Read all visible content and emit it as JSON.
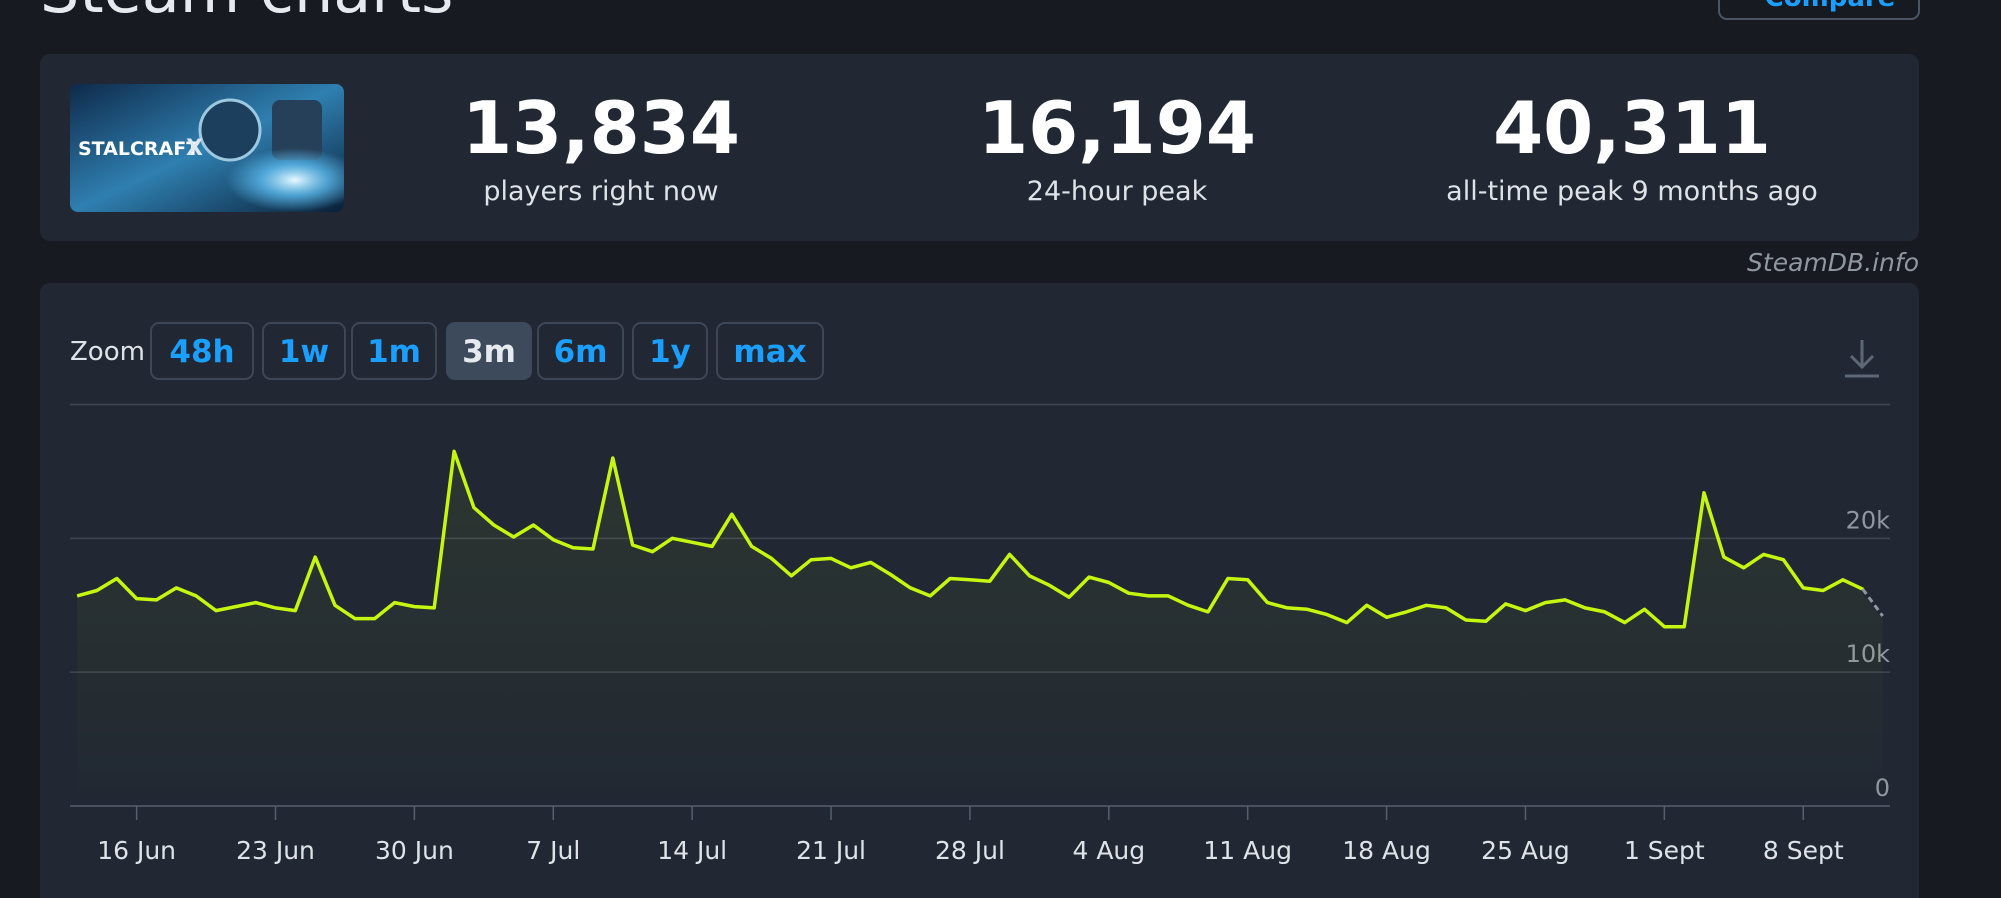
{
  "header": {
    "title": "Steam charts",
    "compare": "Compare"
  },
  "thumbnail": {
    "title": "STALCRAFT",
    "mark": "X"
  },
  "stats": [
    {
      "value": "13,834",
      "label": "players right now"
    },
    {
      "value": "16,194",
      "label": "24-hour peak"
    },
    {
      "value": "40,311",
      "label": "all-time peak 9 months ago"
    }
  ],
  "watermark": "SteamDB.info",
  "zoom": {
    "label": "Zoom",
    "options": [
      "48h",
      "1w",
      "1m",
      "3m",
      "6m",
      "1y",
      "max"
    ],
    "active": "3m"
  },
  "chart_data": {
    "type": "line",
    "color": "#c5f60f",
    "grid": true,
    "categories": [
      null,
      null,
      null,
      "16 Jun",
      null,
      null,
      null,
      null,
      null,
      null,
      "23 Jun",
      null,
      null,
      null,
      null,
      null,
      null,
      "30 Jun",
      null,
      null,
      null,
      null,
      null,
      null,
      "7 Jul",
      null,
      null,
      null,
      null,
      null,
      null,
      "14 Jul",
      null,
      null,
      null,
      null,
      null,
      null,
      "21 Jul",
      null,
      null,
      null,
      null,
      null,
      null,
      "28 Jul",
      null,
      null,
      null,
      null,
      null,
      null,
      "4 Aug",
      null,
      null,
      null,
      null,
      null,
      null,
      "11 Aug",
      null,
      null,
      null,
      null,
      null,
      null,
      "18 Aug",
      null,
      null,
      null,
      null,
      null,
      null,
      "25 Aug",
      null,
      null,
      null,
      null,
      null,
      null,
      "1 Sept",
      null,
      null,
      null,
      null,
      null,
      null,
      "8 Sept",
      null,
      null,
      null,
      null
    ],
    "values": [
      15700,
      16100,
      17000,
      15500,
      15400,
      16300,
      15700,
      14600,
      14900,
      15200,
      14800,
      14600,
      18600,
      15000,
      14000,
      14000,
      15200,
      14900,
      14800,
      26500,
      22300,
      21000,
      20100,
      21000,
      19900,
      19300,
      19200,
      26000,
      19500,
      19000,
      20000,
      19700,
      19400,
      21800,
      19400,
      18500,
      17200,
      18400,
      18500,
      17800,
      18200,
      17300,
      16300,
      15700,
      17000,
      16900,
      16800,
      18800,
      17200,
      16500,
      15600,
      17100,
      16700,
      15900,
      15700,
      15700,
      15000,
      14500,
      17000,
      16900,
      15200,
      14800,
      14700,
      14300,
      13700,
      15000,
      14100,
      14500,
      15000,
      14800,
      13900,
      13800,
      15100,
      14600,
      15200,
      15400,
      14800,
      14500,
      13700,
      14700,
      13400,
      13400,
      23400,
      18600,
      17800,
      18800,
      18400,
      16300,
      16100,
      16900,
      16200,
      14200
    ],
    "ylim": [
      0,
      30000
    ],
    "yticks": [
      0,
      {
        "value": 10000,
        "label": "10k"
      },
      {
        "value": 20000,
        "label": "20k"
      }
    ]
  }
}
